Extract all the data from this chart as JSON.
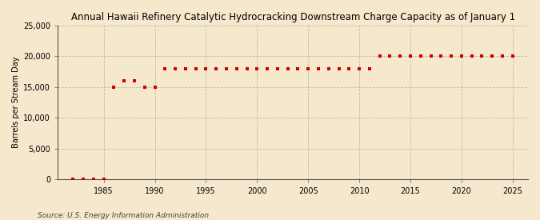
{
  "title": "Annual Hawaii Refinery Catalytic Hydrocracking Downstream Charge Capacity as of January 1",
  "ylabel": "Barrels per Stream Day",
  "source": "Source: U.S. Energy Information Administration",
  "background_color": "#f5e8cc",
  "plot_background_color": "#f5e8cc",
  "marker_color": "#cc0000",
  "grid_color": "#999999",
  "years": [
    1982,
    1983,
    1984,
    1985,
    1986,
    1987,
    1988,
    1989,
    1990,
    1991,
    1992,
    1993,
    1994,
    1995,
    1996,
    1997,
    1998,
    1999,
    2000,
    2001,
    2002,
    2003,
    2004,
    2005,
    2006,
    2007,
    2008,
    2009,
    2010,
    2011,
    2012,
    2013,
    2014,
    2015,
    2016,
    2017,
    2018,
    2019,
    2020,
    2021,
    2022,
    2023,
    2024,
    2025
  ],
  "values": [
    0,
    0,
    0,
    0,
    15000,
    16000,
    16000,
    15000,
    15000,
    18000,
    18000,
    18000,
    18000,
    18000,
    18000,
    18000,
    18000,
    18000,
    18000,
    18000,
    18000,
    18000,
    18000,
    18000,
    18000,
    18000,
    18000,
    18000,
    18000,
    18000,
    20000,
    20000,
    20000,
    20000,
    20000,
    20000,
    20000,
    20000,
    20000,
    20000,
    20000,
    20000,
    20000,
    20000
  ],
  "xlim": [
    1980.5,
    2026.5
  ],
  "ylim": [
    0,
    25000
  ],
  "yticks": [
    0,
    5000,
    10000,
    15000,
    20000,
    25000
  ],
  "xticks": [
    1985,
    1990,
    1995,
    2000,
    2005,
    2010,
    2015,
    2020,
    2025
  ],
  "title_fontsize": 8.5,
  "label_fontsize": 7.0,
  "tick_fontsize": 7.0,
  "source_fontsize": 6.5
}
